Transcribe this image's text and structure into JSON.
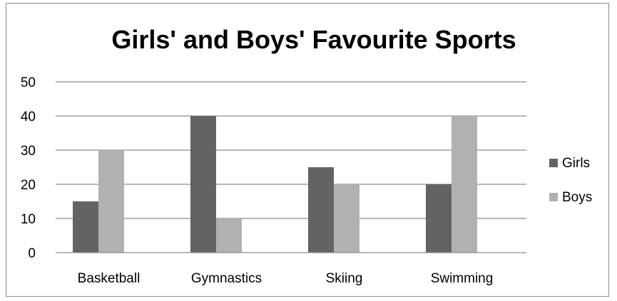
{
  "chart_data": {
    "type": "bar",
    "title": "Girls' and Boys' Favourite Sports",
    "categories": [
      "Basketball",
      "Gymnastics",
      "Skiing",
      "Swimming"
    ],
    "series": [
      {
        "name": "Girls",
        "values": [
          15,
          40,
          25,
          20
        ],
        "color": "#636363"
      },
      {
        "name": "Boys",
        "values": [
          30,
          10,
          20,
          40
        ],
        "color": "#b1b1b1"
      }
    ],
    "ylim": [
      0,
      50
    ],
    "yticks": [
      0,
      10,
      20,
      30,
      40,
      50
    ],
    "grid": true,
    "legend": "right"
  }
}
